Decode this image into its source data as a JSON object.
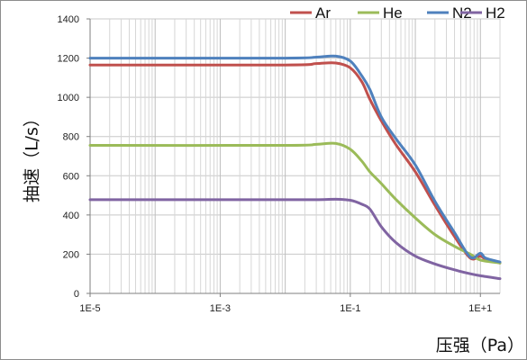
{
  "chart_data": {
    "type": "line",
    "x_scale": "log",
    "xlabel": "压强（Pa）",
    "ylabel": "抽速（L/s）",
    "xlim": [
      1e-05,
      20
    ],
    "ylim": [
      0,
      1400
    ],
    "y_ticks": [
      0,
      200,
      400,
      600,
      800,
      1000,
      1200,
      1400
    ],
    "x_ticks": [
      {
        "value": 1e-05,
        "label": "1E-5"
      },
      {
        "value": 0.001,
        "label": "1E-3"
      },
      {
        "value": 0.1,
        "label": "1E-1"
      },
      {
        "value": 10,
        "label": "1E+1"
      }
    ],
    "grid": true,
    "legend_position": "top-right",
    "series": [
      {
        "name": "Ar",
        "color": "#C0504D",
        "points": [
          [
            1e-05,
            1165
          ],
          [
            0.01,
            1165
          ],
          [
            0.03,
            1172
          ],
          [
            0.06,
            1175
          ],
          [
            0.1,
            1150
          ],
          [
            0.15,
            1080
          ],
          [
            0.2,
            990
          ],
          [
            0.3,
            880
          ],
          [
            0.5,
            760
          ],
          [
            1,
            620
          ],
          [
            2,
            450
          ],
          [
            4,
            290
          ],
          [
            7,
            180
          ],
          [
            10,
            190
          ],
          [
            12,
            175
          ],
          [
            20,
            155
          ]
        ]
      },
      {
        "name": "He",
        "color": "#9BBB59",
        "points": [
          [
            1e-05,
            755
          ],
          [
            0.01,
            755
          ],
          [
            0.03,
            760
          ],
          [
            0.06,
            765
          ],
          [
            0.1,
            735
          ],
          [
            0.15,
            675
          ],
          [
            0.2,
            620
          ],
          [
            0.3,
            560
          ],
          [
            0.5,
            480
          ],
          [
            1,
            385
          ],
          [
            2,
            300
          ],
          [
            4,
            240
          ],
          [
            7,
            200
          ],
          [
            10,
            170
          ],
          [
            20,
            155
          ]
        ]
      },
      {
        "name": "N2",
        "color": "#4F81BD",
        "points": [
          [
            1e-05,
            1200
          ],
          [
            0.01,
            1200
          ],
          [
            0.03,
            1205
          ],
          [
            0.06,
            1210
          ],
          [
            0.1,
            1185
          ],
          [
            0.15,
            1110
          ],
          [
            0.2,
            1040
          ],
          [
            0.3,
            900
          ],
          [
            0.5,
            790
          ],
          [
            1,
            655
          ],
          [
            2,
            470
          ],
          [
            4,
            310
          ],
          [
            7,
            185
          ],
          [
            10,
            205
          ],
          [
            12,
            180
          ],
          [
            20,
            160
          ]
        ]
      },
      {
        "name": "H2",
        "color": "#8064A2",
        "points": [
          [
            1e-05,
            478
          ],
          [
            0.01,
            478
          ],
          [
            0.03,
            478
          ],
          [
            0.06,
            480
          ],
          [
            0.1,
            475
          ],
          [
            0.15,
            455
          ],
          [
            0.2,
            430
          ],
          [
            0.3,
            340
          ],
          [
            0.5,
            260
          ],
          [
            1,
            190
          ],
          [
            2,
            150
          ],
          [
            4,
            120
          ],
          [
            7,
            100
          ],
          [
            10,
            90
          ],
          [
            20,
            75
          ]
        ]
      }
    ]
  }
}
